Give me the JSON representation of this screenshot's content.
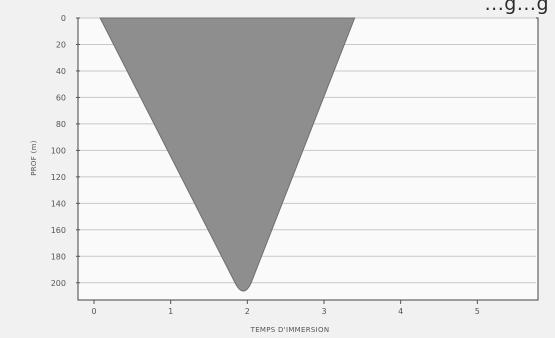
{
  "header": {
    "partial_text": "...g...g"
  },
  "chart_data": {
    "type": "area",
    "title": "",
    "xlabel": "TEMPS D'IMMERSION",
    "ylabel": "PROF (m)",
    "xlim": [
      0,
      6
    ],
    "ylim": [
      0,
      210
    ],
    "y_inverted": true,
    "x_ticks": [
      "0",
      "1",
      "2",
      "3",
      "4",
      "5"
    ],
    "y_ticks": [
      "0",
      "20",
      "40",
      "60",
      "80",
      "100",
      "120",
      "140",
      "160",
      "180",
      "200"
    ],
    "grid": {
      "horizontal": true,
      "vertical": false
    },
    "fill_color": "#8e8e8e",
    "series": [
      {
        "left_edge": [
          {
            "x": 0.08,
            "y": 0
          },
          {
            "x": 1.84,
            "y": 200
          },
          {
            "x": 1.95,
            "y": 208
          }
        ],
        "right_edge": [
          {
            "x": 3.4,
            "y": 0
          },
          {
            "x": 2.05,
            "y": 200
          },
          {
            "x": 1.95,
            "y": 208
          }
        ]
      }
    ]
  }
}
